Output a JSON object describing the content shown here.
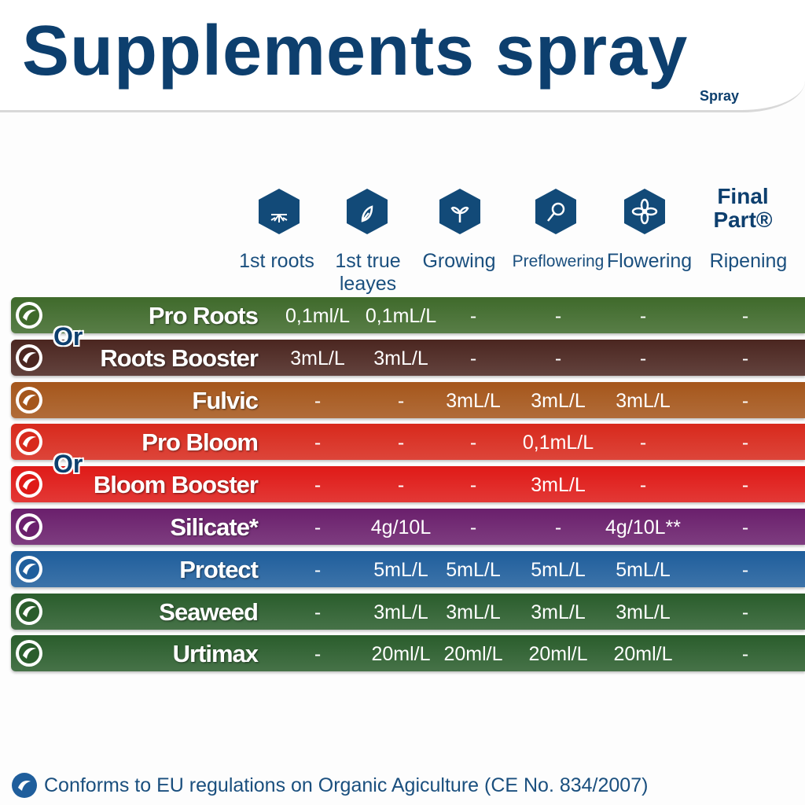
{
  "header": {
    "title": "Supplements spray",
    "subtitle": "Spray"
  },
  "stages": {
    "final_part": "Final Part®",
    "labels": [
      "1st roots",
      "1st true leayes",
      "Growing",
      "Preflowering",
      "Flowering",
      "Ripening"
    ]
  },
  "or_labels": [
    "Or",
    "Or"
  ],
  "rows": [
    {
      "name": "Pro Roots",
      "color": "#3f6a2b",
      "values": [
        "0,1ml/L",
        "0,1mL/L",
        "-",
        "-",
        "-",
        "-"
      ]
    },
    {
      "name": "Roots Booster",
      "color": "#4b2620",
      "values": [
        "3mL/L",
        "3mL/L",
        "-",
        "-",
        "-",
        "-"
      ]
    },
    {
      "name": "Fulvic",
      "color": "#a5561b",
      "values": [
        "-",
        "-",
        "3mL/L",
        "3mL/L",
        "3mL/L",
        "-"
      ]
    },
    {
      "name": "Pro Bloom",
      "color": "#d8291c",
      "values": [
        "-",
        "-",
        "-",
        "0,1mL/L",
        "-",
        "-"
      ]
    },
    {
      "name": "Bloom Booster",
      "color": "#df1a17",
      "values": [
        "-",
        "-",
        "-",
        "3mL/L",
        "-",
        "-"
      ]
    },
    {
      "name": "Silicate*",
      "color": "#6a1f6c",
      "values": [
        "-",
        "4g/10L",
        "-",
        "-",
        "4g/10L**",
        "-"
      ]
    },
    {
      "name": "Protect",
      "color": "#1f5e9c",
      "values": [
        "-",
        "5mL/L",
        "5mL/L",
        "5mL/L",
        "5mL/L",
        "-"
      ]
    },
    {
      "name": "Seaweed",
      "color": "#2a5d2c",
      "values": [
        "-",
        "3mL/L",
        "3mL/L",
        "3mL/L",
        "3mL/L",
        "-"
      ]
    },
    {
      "name": "Urtimax",
      "color": "#2a5d2c",
      "values": [
        "-",
        "20ml/L",
        "20ml/L",
        "20ml/L",
        "20ml/L",
        "-"
      ]
    }
  ],
  "footer": "Conforms to EU regulations on Organic Agiculture (CE No. 834/2007)"
}
